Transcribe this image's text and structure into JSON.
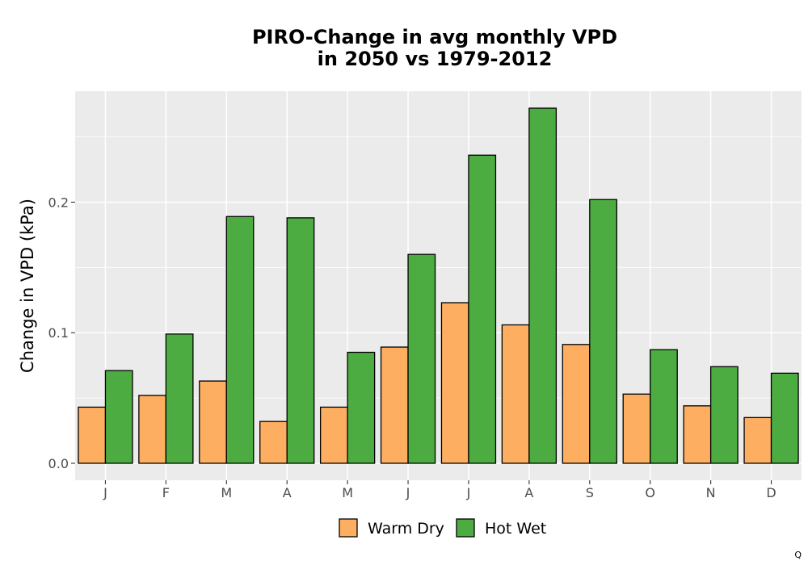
{
  "chart_data": {
    "type": "bar",
    "title": [
      "PIRO-Change in avg monthly VPD",
      "in 2050 vs 1979-2012"
    ],
    "xlabel": "",
    "ylabel": "Change in VPD (kPa)",
    "categories": [
      "J",
      "F",
      "M",
      "A",
      "M",
      "J",
      "J",
      "A",
      "S",
      "O",
      "N",
      "D"
    ],
    "series": [
      {
        "name": "Warm Dry",
        "color": "#FDAE61",
        "values": [
          0.043,
          0.052,
          0.063,
          0.032,
          0.043,
          0.089,
          0.123,
          0.106,
          0.091,
          0.053,
          0.044,
          0.035
        ]
      },
      {
        "name": "Hot Wet",
        "color": "#4DAC41",
        "values": [
          0.071,
          0.099,
          0.189,
          0.188,
          0.085,
          0.16,
          0.236,
          0.272,
          0.202,
          0.087,
          0.074,
          0.069
        ]
      }
    ],
    "ylim": [
      -0.013,
      0.285
    ],
    "yticks": [
      0.0,
      0.1,
      0.2
    ],
    "ytick_labels": [
      "0.0",
      "0.1",
      "0.2"
    ],
    "grid": true,
    "legend_position": "bottom",
    "panel_background": "#EBEBEB"
  },
  "corner_note": "Q"
}
